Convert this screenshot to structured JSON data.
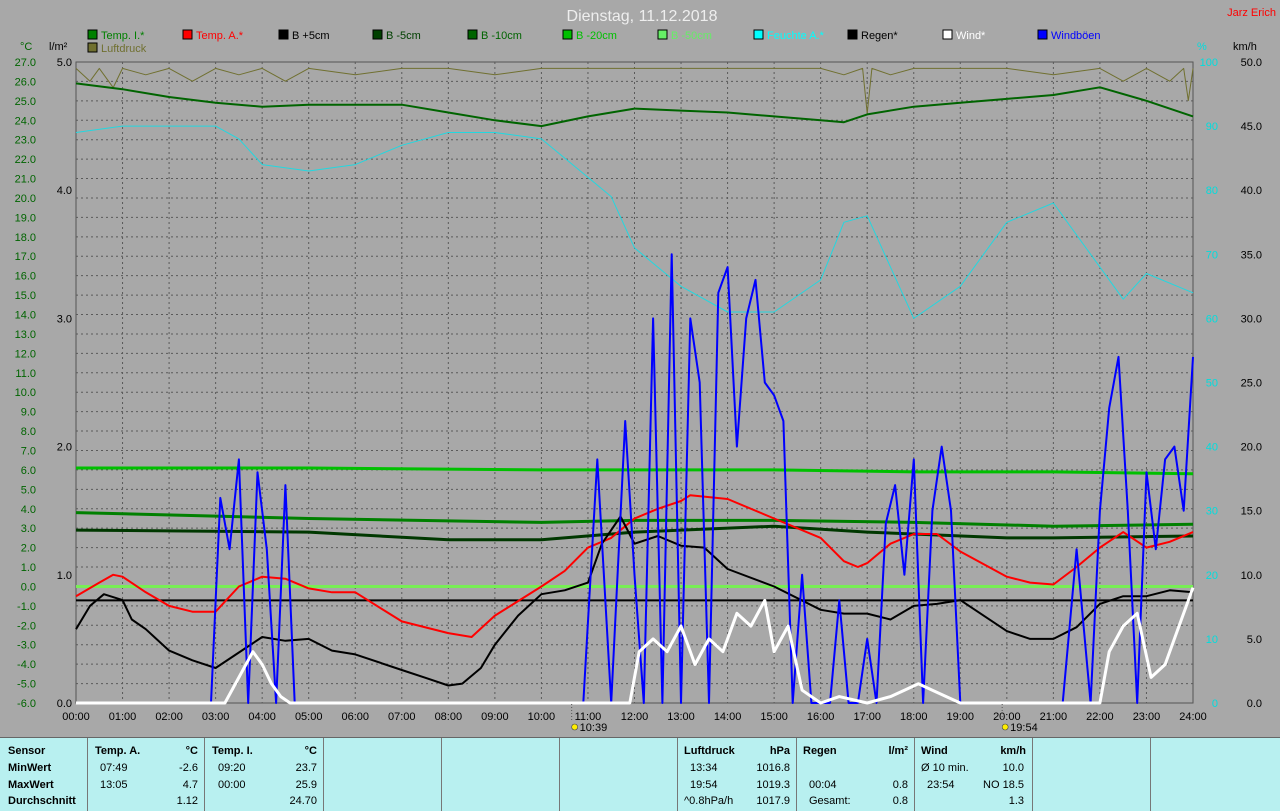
{
  "title": "Dienstag, 11.12.2018",
  "author": "Jarz Erich",
  "colors": {
    "background": "#a8a8a8",
    "grid": "#666666",
    "table_bg": "#b8f0f0",
    "author": "#ff0000"
  },
  "units": {
    "left1": "°C",
    "left2": "l/m²",
    "right1": "%",
    "right2": "km/h"
  },
  "legend": [
    {
      "label": "Temp. I.*",
      "color": "#008000"
    },
    {
      "label": "Temp. A.*",
      "color": "#ff0000"
    },
    {
      "label": "B +5cm",
      "color": "#000000"
    },
    {
      "label": "B -5cm",
      "color": "#004000"
    },
    {
      "label": "B -10cm",
      "color": "#006400"
    },
    {
      "label": "B -20cm",
      "color": "#00c000"
    },
    {
      "label": "B -50cm",
      "color": "#66ee66"
    },
    {
      "label": "Feuchte A.*",
      "color": "#00ffff"
    },
    {
      "label": "Regen*",
      "color": "#000000"
    },
    {
      "label": "Wind*",
      "color": "#ffffff"
    },
    {
      "label": "Windböen",
      "color": "#0000ff"
    },
    {
      "label": "Luftdruck",
      "color": "#707030"
    }
  ],
  "events": [
    {
      "icon": "sunrise-icon",
      "time": "10:39"
    },
    {
      "icon": "sunset-icon",
      "time": "19:54"
    }
  ],
  "chart_data": {
    "type": "line",
    "x_range": [
      0,
      24
    ],
    "x_ticks": [
      "00:00",
      "01:00",
      "02:00",
      "03:00",
      "04:00",
      "05:00",
      "06:00",
      "07:00",
      "08:00",
      "09:00",
      "10:00",
      "11:00",
      "12:00",
      "13:00",
      "14:00",
      "15:00",
      "16:00",
      "17:00",
      "18:00",
      "19:00",
      "20:00",
      "21:00",
      "22:00",
      "23:00",
      "24:00"
    ],
    "y_temp": {
      "range": [
        -6,
        27
      ],
      "ticks": [
        "-6.0",
        "-5.0",
        "-4.0",
        "-3.0",
        "-2.0",
        "-1.0",
        "0.0",
        "1.0",
        "2.0",
        "3.0",
        "4.0",
        "5.0",
        "6.0",
        "7.0",
        "8.0",
        "9.0",
        "10.0",
        "11.0",
        "12.0",
        "13.0",
        "14.0",
        "15.0",
        "16.0",
        "17.0",
        "18.0",
        "19.0",
        "20.0",
        "21.0",
        "22.0",
        "23.0",
        "24.0",
        "25.0",
        "26.0",
        "27.0"
      ]
    },
    "y_rain": {
      "range": [
        0,
        5
      ],
      "ticks": [
        "0.0",
        "1.0",
        "2.0",
        "3.0",
        "4.0",
        "5.0"
      ]
    },
    "y_hum": {
      "range": [
        0,
        100
      ],
      "ticks": [
        "0",
        "10",
        "20",
        "30",
        "40",
        "50",
        "60",
        "70",
        "80",
        "90",
        "100"
      ]
    },
    "y_wind": {
      "range": [
        0,
        50
      ],
      "ticks": [
        "0.0",
        "5.0",
        "10.0",
        "15.0",
        "20.0",
        "25.0",
        "30.0",
        "35.0",
        "40.0",
        "45.0",
        "50.0"
      ]
    },
    "series": [
      {
        "name": "Temp. I.*",
        "axis": "temp",
        "color": "#006400",
        "width": 2,
        "x": [
          0,
          1,
          2,
          3,
          4,
          5,
          6,
          7,
          8,
          9,
          10,
          11,
          12,
          13,
          14,
          15,
          16,
          16.5,
          17,
          18,
          19,
          20,
          21,
          22,
          23,
          24
        ],
        "y": [
          25.9,
          25.6,
          25.2,
          24.9,
          24.7,
          24.8,
          24.8,
          24.8,
          24.4,
          24.0,
          23.7,
          24.2,
          24.6,
          24.5,
          24.4,
          24.2,
          24.0,
          23.9,
          24.3,
          24.7,
          24.9,
          25.1,
          25.3,
          25.7,
          25.0,
          24.2
        ]
      },
      {
        "name": "Feuchte A.*",
        "axis": "hum",
        "color": "#22d8e0",
        "width": 1,
        "x": [
          0,
          1,
          2,
          3,
          3.5,
          4,
          5,
          6,
          7,
          8,
          9,
          10,
          11,
          11.5,
          12,
          13,
          14,
          15,
          16,
          16.5,
          17,
          18,
          19,
          20,
          21,
          22,
          22.5,
          23,
          24
        ],
        "y": [
          89,
          90,
          90,
          90,
          88,
          84,
          83,
          84,
          87,
          89,
          89,
          88,
          82,
          79,
          71,
          65,
          61,
          61,
          66,
          75,
          76,
          60,
          65,
          75,
          78,
          68,
          63,
          67,
          64
        ]
      },
      {
        "name": "B -20cm",
        "axis": "temp",
        "color": "#00c000",
        "width": 3,
        "x": [
          0,
          5,
          10,
          13,
          14,
          15,
          18,
          21,
          24
        ],
        "y": [
          6.1,
          6.1,
          6.0,
          6.0,
          6.0,
          6.0,
          5.9,
          5.9,
          5.8
        ]
      },
      {
        "name": "B -10cm",
        "axis": "temp",
        "color": "#008000",
        "width": 3,
        "x": [
          0,
          5,
          10,
          12,
          15,
          18,
          21,
          24
        ],
        "y": [
          3.8,
          3.5,
          3.3,
          3.4,
          3.4,
          3.3,
          3.1,
          3.2
        ]
      },
      {
        "name": "B -5cm",
        "axis": "temp",
        "color": "#003800",
        "width": 3,
        "x": [
          0,
          5,
          8,
          10,
          12,
          15,
          17,
          20,
          21,
          24
        ],
        "y": [
          2.9,
          2.8,
          2.4,
          2.4,
          2.8,
          3.1,
          2.8,
          2.5,
          2.5,
          2.6
        ]
      },
      {
        "name": "B -50cm",
        "axis": "temp",
        "color": "#77ee55",
        "width": 3,
        "x": [
          0,
          24
        ],
        "y": [
          0.0,
          0.0
        ]
      },
      {
        "name": "Regen*",
        "axis": "rain",
        "color": "#000000",
        "width": 2,
        "x": [
          0,
          24
        ],
        "y": [
          0.8,
          0.8
        ]
      },
      {
        "name": "Temp. A.*",
        "axis": "temp",
        "color": "#ff0000",
        "width": 2,
        "x": [
          0,
          0.5,
          0.8,
          1,
          1.5,
          2,
          2.5,
          3,
          3.5,
          4,
          4.5,
          5,
          5.5,
          6,
          7,
          8,
          8.5,
          9,
          10,
          10.5,
          11,
          11.5,
          12,
          12.5,
          13,
          13.2,
          14,
          15,
          16,
          16.5,
          16.8,
          17,
          17.5,
          18,
          18.5,
          19,
          20,
          20.5,
          21,
          21.5,
          22,
          22.5,
          23,
          23.5,
          24
        ],
        "y": [
          -0.5,
          0.2,
          0.6,
          0.5,
          -0.3,
          -1.0,
          -1.3,
          -1.3,
          0.0,
          0.5,
          0.4,
          -0.1,
          -0.3,
          -0.3,
          -1.8,
          -2.4,
          -2.6,
          -1.5,
          0.0,
          0.8,
          2.0,
          2.5,
          3.5,
          4.0,
          4.4,
          4.7,
          4.5,
          3.5,
          2.5,
          1.3,
          1.0,
          1.2,
          2.2,
          2.7,
          2.7,
          1.8,
          0.5,
          0.2,
          0.1,
          1.0,
          2.0,
          2.8,
          2.0,
          2.3,
          2.8
        ]
      },
      {
        "name": "B +5cm",
        "axis": "temp",
        "color": "#000000",
        "width": 2,
        "x": [
          0,
          0.3,
          0.6,
          1,
          1.2,
          1.5,
          2,
          2.5,
          3,
          3.5,
          4,
          4.5,
          5,
          5.5,
          6,
          7,
          7.5,
          8,
          8.3,
          8.7,
          9,
          9.5,
          10,
          10.5,
          11,
          11.3,
          11.7,
          12,
          12.5,
          13,
          13.5,
          14,
          15,
          16,
          16.5,
          17,
          17.5,
          18,
          18.5,
          19,
          20,
          20.5,
          21,
          21.5,
          22,
          22.5,
          23,
          23.5,
          24
        ],
        "y": [
          -2.2,
          -1.0,
          -0.4,
          -0.7,
          -1.7,
          -2.2,
          -3.3,
          -3.8,
          -4.2,
          -3.4,
          -2.6,
          -2.8,
          -2.7,
          -3.3,
          -3.5,
          -4.3,
          -4.7,
          -5.1,
          -5.0,
          -4.2,
          -3.0,
          -1.5,
          -0.4,
          -0.2,
          0.2,
          2.2,
          3.6,
          2.2,
          2.6,
          2.1,
          2.0,
          0.9,
          0.0,
          -1.2,
          -1.4,
          -1.4,
          -1.7,
          -1.0,
          -0.9,
          -0.7,
          -2.3,
          -2.7,
          -2.7,
          -2.1,
          -0.9,
          -0.5,
          -0.5,
          -0.2,
          -0.3
        ]
      },
      {
        "name": "Windböen",
        "axis": "wind",
        "color": "#0000ff",
        "width": 2,
        "x": [
          0,
          2.9,
          3.1,
          3.3,
          3.5,
          3.7,
          3.9,
          4.1,
          4.3,
          4.5,
          4.7,
          4.9,
          10.9,
          11.2,
          11.5,
          11.8,
          12.0,
          12.2,
          12.4,
          12.6,
          12.8,
          13.0,
          13.2,
          13.4,
          13.6,
          13.8,
          14.0,
          14.2,
          14.4,
          14.6,
          14.8,
          15.0,
          15.2,
          15.4,
          15.6,
          15.8,
          16.0,
          16.2,
          16.4,
          16.6,
          16.8,
          17.0,
          17.2,
          17.4,
          17.6,
          17.8,
          18.0,
          18.2,
          18.4,
          18.6,
          18.8,
          19.0,
          21.2,
          21.5,
          21.8,
          22.0,
          22.2,
          22.4,
          22.6,
          22.8,
          23.0,
          23.2,
          23.4,
          23.6,
          23.8,
          24
        ],
        "y": [
          0,
          0,
          16,
          12,
          19,
          0,
          18,
          12,
          0,
          17,
          0,
          0,
          0,
          19,
          0,
          22,
          10,
          0,
          30,
          0,
          35,
          0,
          30,
          25,
          0,
          32,
          34,
          20,
          30,
          33,
          25,
          24,
          22,
          0,
          10,
          0,
          0,
          0,
          8,
          0,
          0,
          5,
          0,
          14,
          17,
          10,
          19,
          0,
          15,
          20,
          15,
          0,
          0,
          12,
          0,
          15,
          23,
          27,
          15,
          0,
          18,
          12,
          19,
          20,
          15,
          27
        ]
      },
      {
        "name": "Wind*",
        "axis": "wind",
        "color": "#ffffff",
        "width": 3,
        "x": [
          0,
          3.2,
          3.5,
          3.8,
          4.0,
          4.2,
          4.4,
          4.6,
          4.8,
          11.9,
          12.1,
          12.4,
          12.7,
          13.0,
          13.3,
          13.6,
          13.9,
          14.2,
          14.5,
          14.8,
          15.0,
          15.3,
          15.6,
          16.0,
          16.4,
          17.0,
          17.5,
          17.8,
          18.1,
          18.4,
          18.7,
          19.0,
          22.0,
          22.2,
          22.5,
          22.8,
          23.1,
          23.4,
          23.7,
          24
        ],
        "y": [
          0,
          0,
          2,
          4,
          3,
          1.5,
          0.5,
          0,
          0,
          0,
          4,
          5,
          4,
          6,
          3,
          5,
          4,
          7,
          6,
          8,
          4,
          6,
          1,
          0,
          0.5,
          0,
          0.5,
          1,
          1.5,
          1,
          0.5,
          0,
          0,
          4,
          6,
          7,
          2,
          3,
          6,
          9
        ]
      },
      {
        "name": "Luftdruck",
        "axis": "pres",
        "color": "#707030",
        "width": 1,
        "x": [
          0,
          0.3,
          0.5,
          0.8,
          1.0,
          1.5,
          2.0,
          2.5,
          3.0,
          3.5,
          4.0,
          4.5,
          5.0,
          6.0,
          7.0,
          8.0,
          9.0,
          10.0,
          11.0,
          12.0,
          13.0,
          14.0,
          15.0,
          16.0,
          16.5,
          16.9,
          17.0,
          17.1,
          17.5,
          18.0,
          19.0,
          20.0,
          21.0,
          22.0,
          22.5,
          23.0,
          23.5,
          23.8,
          23.9,
          24.0
        ],
        "y": [
          99,
          97,
          99,
          96,
          99,
          98,
          99,
          97,
          99,
          98,
          99,
          97,
          99,
          98,
          99,
          99,
          98,
          99,
          99,
          99,
          99,
          99,
          99,
          99,
          98,
          99,
          92,
          99,
          98,
          99,
          99,
          99,
          98,
          99,
          97,
          99,
          97,
          99,
          94,
          99
        ]
      }
    ],
    "sunrise": 10.65,
    "sunset": 19.9
  },
  "table": {
    "sensor": {
      "header": "Sensor",
      "rows": [
        "MinWert",
        "MaxWert",
        "Durchschnitt"
      ]
    },
    "temp_a": {
      "header": "Temp. A.",
      "unit": "°C",
      "min_time": "07:49",
      "min": "-2.6",
      "max_time": "13:05",
      "max": "4.7",
      "avg": "1.12"
    },
    "temp_i": {
      "header": "Temp. I.",
      "unit": "°C",
      "min_time": "09:20",
      "min": "23.7",
      "max_time": "00:00",
      "max": "25.9",
      "avg": "24.70"
    },
    "luftdruck": {
      "header": "Luftdruck",
      "unit": "hPa",
      "min_time": "13:34",
      "min": "1016.8",
      "max_time": "19:54",
      "max": "1019.3",
      "avg_label": "^0.8hPa/h",
      "avg": "1017.9"
    },
    "regen": {
      "header": "Regen",
      "unit": "l/m²",
      "max_time": "00:04",
      "max": "0.8",
      "avg_label": "Gesamt:",
      "avg": "0.8"
    },
    "wind": {
      "header": "Wind",
      "unit": "km/h",
      "min_label": "Ø 10 min.",
      "min": "10.0",
      "max_time": "23:54",
      "max": "NO 18.5",
      "avg": "1.3"
    }
  }
}
